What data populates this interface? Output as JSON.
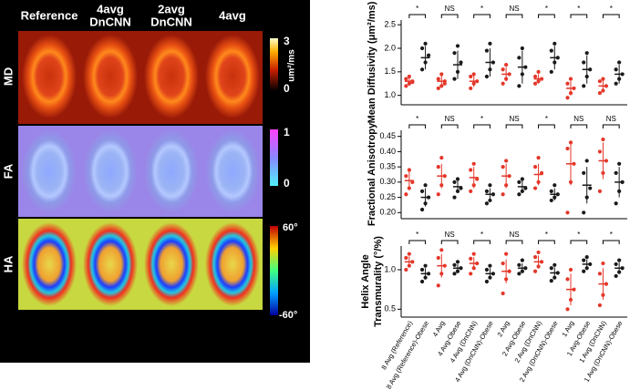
{
  "figure": {
    "columns": [
      [
        "Reference"
      ],
      [
        "4avg",
        "DnCNN"
      ],
      [
        "2avg",
        "DnCNN"
      ],
      [
        "4avg"
      ]
    ],
    "rows": [
      "MD",
      "FA",
      "HA"
    ],
    "colorbars": [
      {
        "max": "3",
        "unit": "um²/ms",
        "min": "0"
      },
      {
        "max": "1",
        "min": "0"
      },
      {
        "max": "60°",
        "min": "-60°"
      }
    ]
  },
  "chart_data": [
    {
      "type": "strip",
      "ylabel": [
        "Mean Diffusivity (μm²/ms)"
      ],
      "ylim": [
        0.8,
        2.6
      ],
      "yticks": [
        {
          "value": 1,
          "label": "1.0"
        },
        1.5,
        {
          "value": 2,
          "label": "2.0"
        },
        2.5
      ],
      "significance": [
        "*",
        "NS",
        "*",
        "NS",
        "*",
        "*",
        "*"
      ],
      "colors": [
        "#e4372a",
        "#1a1a1a",
        "#e4372a",
        "#1a1a1a",
        "#e4372a",
        "#1a1a1a",
        "#e4372a",
        "#1a1a1a",
        "#e4372a",
        "#1a1a1a",
        "#e4372a",
        "#1a1a1a",
        "#e4372a",
        "#1a1a1a"
      ],
      "values": [
        [
          1.2,
          1.25,
          1.3,
          1.35,
          1.4,
          1.28
        ],
        [
          1.55,
          1.7,
          1.85,
          2.0,
          2.1
        ],
        [
          1.15,
          1.2,
          1.3,
          1.35,
          1.45,
          1.25
        ],
        [
          1.35,
          1.5,
          1.7,
          1.9,
          2.05
        ],
        [
          1.15,
          1.25,
          1.3,
          1.4,
          1.45
        ],
        [
          1.4,
          1.55,
          1.7,
          1.95,
          2.1
        ],
        [
          1.25,
          1.35,
          1.45,
          1.55,
          1.65
        ],
        [
          1.2,
          1.45,
          1.6,
          1.8,
          2.0
        ],
        [
          1.25,
          1.3,
          1.35,
          1.4,
          1.5
        ],
        [
          1.5,
          1.7,
          1.8,
          1.95,
          2.1
        ],
        [
          0.95,
          1.05,
          1.15,
          1.25,
          1.35
        ],
        [
          1.2,
          1.4,
          1.55,
          1.7,
          1.9
        ],
        [
          1.05,
          1.1,
          1.2,
          1.3,
          1.35
        ],
        [
          1.25,
          1.35,
          1.45,
          1.55,
          1.7
        ]
      ],
      "means": [
        1.3,
        1.8,
        1.3,
        1.65,
        1.3,
        1.7,
        1.45,
        1.6,
        1.35,
        1.8,
        1.15,
        1.55,
        1.2,
        1.45
      ],
      "sds": [
        0.1,
        0.25,
        0.12,
        0.3,
        0.12,
        0.3,
        0.15,
        0.35,
        0.1,
        0.25,
        0.15,
        0.3,
        0.12,
        0.2
      ]
    },
    {
      "type": "strip",
      "ylabel": [
        "Fractional Anisotropy"
      ],
      "ylim": [
        0.18,
        0.47
      ],
      "yticks": [
        {
          "value": 0.2,
          "label": "0.20"
        },
        0.25,
        {
          "value": 0.3,
          "label": "0.30"
        },
        0.35,
        {
          "value": 0.4,
          "label": "0.40"
        },
        0.45
      ],
      "significance": [
        "*",
        "NS",
        "*",
        "NS",
        "*",
        "NS",
        "NS"
      ],
      "colors": [
        "#e4372a",
        "#1a1a1a",
        "#e4372a",
        "#1a1a1a",
        "#e4372a",
        "#1a1a1a",
        "#e4372a",
        "#1a1a1a",
        "#e4372a",
        "#1a1a1a",
        "#e4372a",
        "#1a1a1a",
        "#e4372a",
        "#1a1a1a"
      ],
      "values": [
        [
          0.26,
          0.28,
          0.3,
          0.32,
          0.34
        ],
        [
          0.21,
          0.23,
          0.25,
          0.27,
          0.29
        ],
        [
          0.26,
          0.29,
          0.32,
          0.35,
          0.38
        ],
        [
          0.25,
          0.27,
          0.28,
          0.3,
          0.31
        ],
        [
          0.27,
          0.29,
          0.31,
          0.34,
          0.36
        ],
        [
          0.23,
          0.24,
          0.26,
          0.27,
          0.29
        ],
        [
          0.26,
          0.29,
          0.32,
          0.35,
          0.37
        ],
        [
          0.26,
          0.27,
          0.28,
          0.3,
          0.31
        ],
        [
          0.28,
          0.3,
          0.33,
          0.35,
          0.38
        ],
        [
          0.24,
          0.25,
          0.26,
          0.27,
          0.29
        ],
        [
          0.2,
          0.3,
          0.36,
          0.41,
          0.43
        ],
        [
          0.2,
          0.25,
          0.28,
          0.33,
          0.37
        ],
        [
          0.27,
          0.33,
          0.37,
          0.4,
          0.44
        ],
        [
          0.23,
          0.27,
          0.3,
          0.33,
          0.36
        ]
      ],
      "means": [
        0.305,
        0.25,
        0.32,
        0.285,
        0.315,
        0.26,
        0.32,
        0.285,
        0.325,
        0.26,
        0.36,
        0.29,
        0.37,
        0.3
      ],
      "sds": [
        0.03,
        0.03,
        0.04,
        0.02,
        0.035,
        0.02,
        0.04,
        0.02,
        0.035,
        0.02,
        0.07,
        0.06,
        0.06,
        0.05
      ]
    },
    {
      "type": "strip",
      "ylabel": [
        "Helix Angle",
        "Transmurality (°/%)"
      ],
      "ylim": [
        0.4,
        1.3
      ],
      "yticks": [
        0.5,
        {
          "value": 1,
          "label": "1.0"
        }
      ],
      "significance": [
        "*",
        "NS",
        "*",
        "NS",
        "*",
        "*",
        "*"
      ],
      "colors": [
        "#e4372a",
        "#1a1a1a",
        "#e4372a",
        "#1a1a1a",
        "#e4372a",
        "#1a1a1a",
        "#e4372a",
        "#1a1a1a",
        "#e4372a",
        "#1a1a1a",
        "#e4372a",
        "#1a1a1a",
        "#e4372a",
        "#1a1a1a"
      ],
      "categories": [
        "8 Avg (Reference)",
        "8 Avg (Reference)-Obese",
        "4 Avg",
        "4 Avg-Obese",
        "4 Avg (DnCNN)",
        "4 Avg (DnCNN)-Obese",
        "2 Avg",
        "2 Avg-Obese",
        "2 Avg (DnCNN)",
        "2 Avg (DnCNN)-Obese",
        "1 Avg",
        "1 Avg-Obese",
        "1 Avg (DnCNN)",
        "1 Avg (DnCNN)-Obese"
      ],
      "values": [
        [
          1.0,
          1.05,
          1.1,
          1.15,
          1.2
        ],
        [
          0.85,
          0.9,
          0.95,
          1.0,
          1.05
        ],
        [
          0.8,
          0.95,
          1.05,
          1.15,
          1.25
        ],
        [
          0.95,
          0.98,
          1.02,
          1.06,
          1.1
        ],
        [
          0.95,
          1.02,
          1.08,
          1.14,
          1.2
        ],
        [
          0.85,
          0.9,
          0.95,
          1.0,
          1.05
        ],
        [
          0.7,
          0.88,
          0.98,
          1.08,
          1.2
        ],
        [
          0.95,
          0.98,
          1.02,
          1.06,
          1.12
        ],
        [
          0.98,
          1.04,
          1.1,
          1.16,
          1.22
        ],
        [
          0.86,
          0.9,
          0.96,
          1.02,
          1.06
        ],
        [
          0.5,
          0.62,
          0.75,
          0.88,
          1.0
        ],
        [
          0.98,
          1.02,
          1.07,
          1.12,
          1.16
        ],
        [
          0.55,
          0.68,
          0.82,
          0.95,
          1.08
        ],
        [
          0.92,
          0.97,
          1.02,
          1.07,
          1.12
        ]
      ],
      "means": [
        1.1,
        0.95,
        1.05,
        1.02,
        1.08,
        0.95,
        0.98,
        1.02,
        1.1,
        0.96,
        0.75,
        1.07,
        0.82,
        1.02
      ],
      "sds": [
        0.07,
        0.07,
        0.15,
        0.05,
        0.08,
        0.07,
        0.15,
        0.06,
        0.08,
        0.07,
        0.2,
        0.06,
        0.2,
        0.07
      ]
    }
  ]
}
